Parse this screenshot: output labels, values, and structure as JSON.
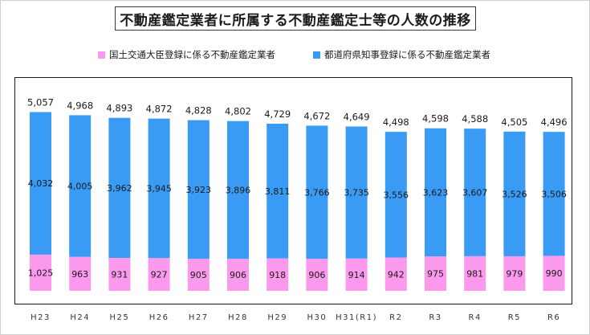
{
  "colors": {
    "pref": "#3a9bf4",
    "national": "#fb9aed",
    "axis": "#1a1a1a"
  },
  "chart_data": {
    "type": "bar",
    "stacked": true,
    "title": "不動産鑑定業者に所属する不動産鑑定士等の人数の推移",
    "categories": [
      "H23",
      "H24",
      "H25",
      "H26",
      "H27",
      "H28",
      "H29",
      "H30",
      "H31(R1)",
      "R2",
      "R3",
      "R4",
      "R5",
      "R6"
    ],
    "series": [
      {
        "name": "国土交通大臣登録に係る不動産鑑定業者",
        "color": "#fb9aed",
        "values": [
          1025,
          963,
          931,
          927,
          905,
          906,
          918,
          906,
          914,
          942,
          975,
          981,
          979,
          990
        ],
        "labels": [
          "1,025",
          "963",
          "931",
          "927",
          "905",
          "906",
          "918",
          "906",
          "914",
          "942",
          "975",
          "981",
          "979",
          "990"
        ]
      },
      {
        "name": "都道府県知事登録に係る不動産鑑定業者",
        "color": "#3a9bf4",
        "values": [
          4032,
          4005,
          3962,
          3945,
          3923,
          3896,
          3811,
          3766,
          3735,
          3556,
          3623,
          3607,
          3526,
          3506
        ],
        "labels": [
          "4,032",
          "4,005",
          "3,962",
          "3,945",
          "3,923",
          "3,896",
          "3,811",
          "3,766",
          "3,735",
          "3,556",
          "3,623",
          "3,607",
          "3,526",
          "3,506"
        ]
      }
    ],
    "totals": [
      5057,
      4968,
      4893,
      4872,
      4828,
      4802,
      4729,
      4672,
      4649,
      4498,
      4598,
      4588,
      4505,
      4496
    ],
    "total_labels": [
      "5,057",
      "4,968",
      "4,893",
      "4,872",
      "4,828",
      "4,802",
      "4,729",
      "4,672",
      "4,649",
      "4,498",
      "4,598",
      "4,588",
      "4,505",
      "4,496"
    ],
    "legend_position": "top",
    "grid": false
  }
}
